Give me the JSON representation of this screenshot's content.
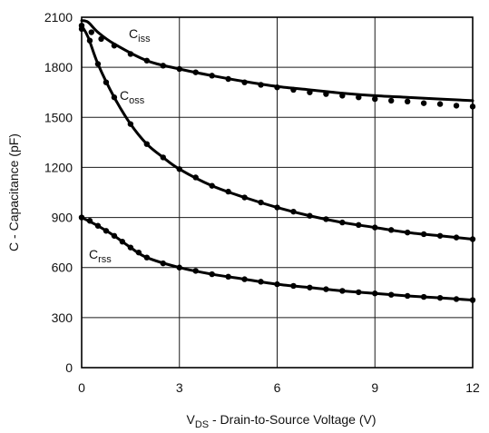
{
  "chart_data": {
    "type": "line",
    "xlabel": {
      "main": "V",
      "sub": "DS",
      "rest": " - Drain-to-Source Voltage (V)"
    },
    "ylabel": "C - Capacitance (pF)",
    "xlim": [
      0,
      12
    ],
    "ylim": [
      0,
      2100
    ],
    "xticks": [
      0,
      3,
      6,
      9,
      12
    ],
    "yticks": [
      0,
      300,
      600,
      900,
      1200,
      1500,
      1800,
      2100
    ],
    "grid": true,
    "series": [
      {
        "name": "Ciss",
        "label_main": "C",
        "label_sub": "iss",
        "line": {
          "x": [
            0,
            0.2,
            0.5,
            1,
            2,
            3,
            4,
            5,
            6,
            7,
            8,
            9,
            10,
            11,
            12
          ],
          "y": [
            2080,
            2070,
            2010,
            1940,
            1840,
            1790,
            1750,
            1715,
            1685,
            1665,
            1645,
            1630,
            1620,
            1610,
            1600
          ]
        },
        "markers": {
          "x": [
            0,
            0.3,
            0.6,
            1,
            1.5,
            2,
            2.5,
            3,
            3.5,
            4,
            4.5,
            5,
            5.5,
            6,
            6.5,
            7,
            7.5,
            8,
            8.5,
            9,
            9.5,
            10,
            10.5,
            11,
            11.5,
            12
          ],
          "y": [
            2030,
            2010,
            1970,
            1930,
            1880,
            1840,
            1810,
            1790,
            1770,
            1750,
            1730,
            1710,
            1695,
            1680,
            1665,
            1650,
            1640,
            1630,
            1620,
            1610,
            1600,
            1595,
            1585,
            1580,
            1570,
            1565
          ]
        }
      },
      {
        "name": "Coss",
        "label_main": "C",
        "label_sub": "oss",
        "line": {
          "x": [
            0,
            0.2,
            0.5,
            1,
            1.5,
            2,
            2.5,
            3,
            4,
            5,
            6,
            7,
            8,
            9,
            10,
            11,
            12
          ],
          "y": [
            2050,
            1980,
            1820,
            1620,
            1460,
            1340,
            1260,
            1190,
            1090,
            1020,
            960,
            910,
            870,
            840,
            810,
            790,
            770
          ]
        },
        "markers": {
          "x": [
            0,
            0.25,
            0.5,
            0.75,
            1,
            1.5,
            2,
            2.5,
            3,
            3.5,
            4,
            4.5,
            5,
            5.5,
            6,
            6.5,
            7,
            7.5,
            8,
            8.5,
            9,
            9.5,
            10,
            10.5,
            11,
            11.5,
            12
          ],
          "y": [
            2050,
            1960,
            1820,
            1710,
            1620,
            1460,
            1340,
            1260,
            1190,
            1140,
            1090,
            1055,
            1020,
            990,
            960,
            935,
            910,
            890,
            870,
            855,
            840,
            825,
            810,
            800,
            790,
            780,
            770
          ]
        }
      },
      {
        "name": "Crss",
        "label_main": "C",
        "label_sub": "rss",
        "line": {
          "x": [
            0,
            0.5,
            1,
            1.5,
            2,
            3,
            4,
            5,
            6,
            7,
            8,
            9,
            10,
            11,
            12
          ],
          "y": [
            900,
            850,
            790,
            720,
            660,
            600,
            560,
            530,
            500,
            480,
            460,
            445,
            430,
            418,
            405
          ]
        },
        "markers": {
          "x": [
            0,
            0.25,
            0.5,
            0.75,
            1,
            1.25,
            1.5,
            1.75,
            2,
            2.5,
            3,
            3.5,
            4,
            4.5,
            5,
            5.5,
            6,
            6.5,
            7,
            7.5,
            8,
            8.5,
            9,
            9.5,
            10,
            10.5,
            11,
            11.5,
            12
          ],
          "y": [
            900,
            880,
            850,
            820,
            790,
            755,
            720,
            690,
            660,
            625,
            600,
            580,
            560,
            545,
            530,
            515,
            500,
            490,
            480,
            470,
            460,
            452,
            445,
            437,
            430,
            424,
            418,
            411,
            405
          ]
        }
      }
    ]
  }
}
